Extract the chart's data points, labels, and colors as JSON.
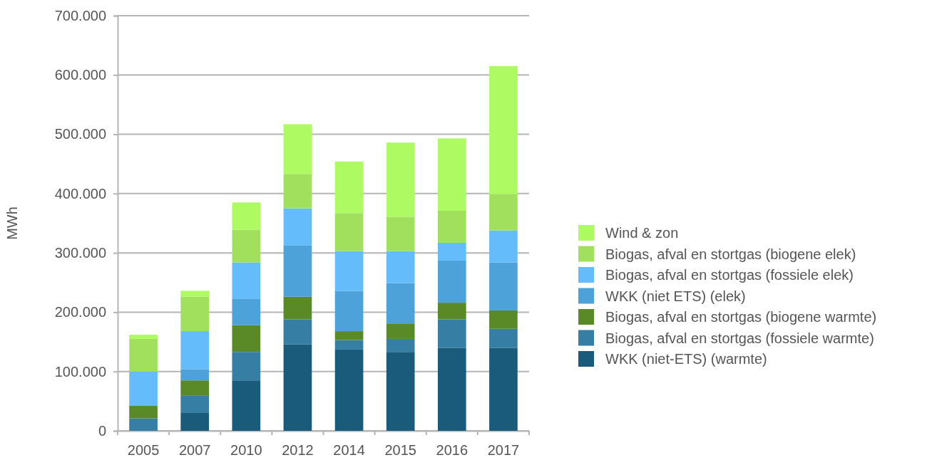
{
  "chart_data": {
    "type": "bar",
    "stacked": true,
    "ylabel": "MWh",
    "categories": [
      "2005",
      "2007",
      "2010",
      "2012",
      "2014",
      "2015",
      "2016",
      "2017"
    ],
    "series": [
      {
        "name": "WKK (niet-ETS) (warmte)",
        "color": "#1a5a7a",
        "values": [
          0,
          30000,
          85000,
          146000,
          137000,
          133000,
          140000,
          140000
        ]
      },
      {
        "name": "Biogas, afval en stortgas (fossiele warmte)",
        "color": "#367ea3",
        "values": [
          21000,
          29000,
          48000,
          42000,
          16000,
          22000,
          48000,
          32000
        ]
      },
      {
        "name": "Biogas, afval en stortgas (biogene warmte)",
        "color": "#5a8a28",
        "values": [
          21000,
          26000,
          45000,
          38000,
          15000,
          26000,
          28000,
          31000
        ]
      },
      {
        "name": "WKK (niet ETS) (elek)",
        "color": "#4da2da",
        "values": [
          0,
          19000,
          45000,
          87000,
          68000,
          68000,
          71000,
          81000
        ]
      },
      {
        "name": "Biogas, afval en stortgas (fossiele elek)",
        "color": "#64bcfb",
        "values": [
          58000,
          64000,
          61000,
          62000,
          67000,
          54000,
          30000,
          54000
        ]
      },
      {
        "name": "Biogas, afval en stortgas (biogene elek)",
        "color": "#a0e05c",
        "values": [
          55000,
          58000,
          55000,
          58000,
          64000,
          58000,
          54000,
          61000
        ]
      },
      {
        "name": "Wind & zon",
        "color": "#adfa62",
        "values": [
          7000,
          10000,
          46000,
          84000,
          87000,
          125000,
          122000,
          216000
        ]
      }
    ],
    "ylim": [
      0,
      700000
    ],
    "yticks": [
      {
        "value": 0,
        "label": "0"
      },
      {
        "value": 100000,
        "label": "100.000"
      },
      {
        "value": 200000,
        "label": "200.000"
      },
      {
        "value": 300000,
        "label": "300.000"
      },
      {
        "value": 400000,
        "label": "400.000"
      },
      {
        "value": 500000,
        "label": "500.000"
      },
      {
        "value": 600000,
        "label": "600.000"
      },
      {
        "value": 700000,
        "label": "700.000"
      }
    ],
    "grid": "y",
    "legend": "right"
  }
}
